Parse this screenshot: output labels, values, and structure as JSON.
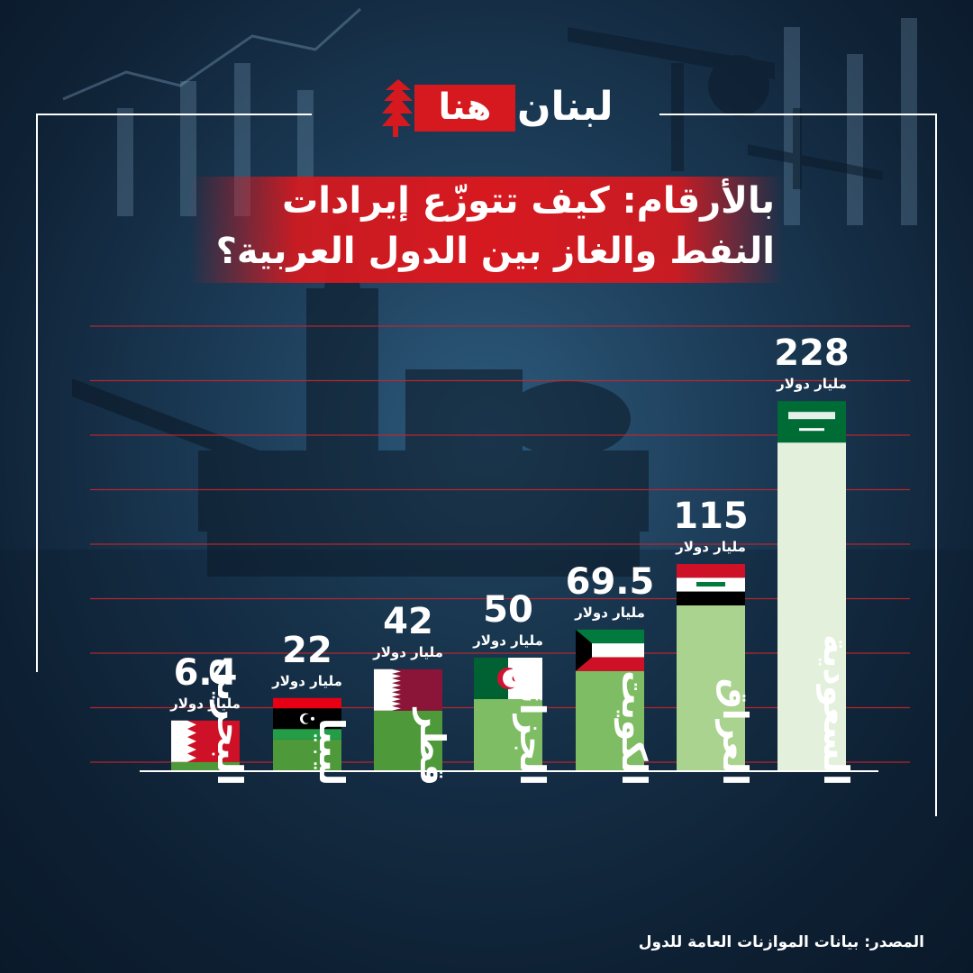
{
  "brand": {
    "logo_red_text": "هنا",
    "logo_white_text": "لبنان"
  },
  "title": {
    "line1": "بالأرقام: كيف تتوزّع إيرادات",
    "line2": "النفط والغاز بين الدول العربية؟"
  },
  "source_text": "المصدر: بيانات الموازنات العامة للدول",
  "colors": {
    "accent": "#d6191f",
    "bar_dark": "#4e9a3a",
    "bar_light": "#e3f0dc",
    "gridline": "#c8252b"
  },
  "chart_data": {
    "type": "bar",
    "title": "بالأرقام: كيف تتوزّع إيرادات النفط والغاز بين الدول العربية؟",
    "ylabel": "",
    "unit_label": "مليار دولار",
    "categories": [
      "البحرين",
      "ليبيا",
      "قطر",
      "الجزائر",
      "الكويت",
      "العراق",
      "السعودية"
    ],
    "values": [
      6.4,
      22,
      42,
      50,
      69.5,
      115,
      228
    ],
    "value_labels": [
      "6.4",
      "22",
      "42",
      "50",
      "69.5",
      "115",
      "228"
    ],
    "flags": [
      "bahrain-flag",
      "libya-flag",
      "qatar-flag",
      "algeria-flag",
      "kuwait-flag",
      "iraq-flag",
      "saudi-flag"
    ],
    "grid": true,
    "legend": "none"
  }
}
